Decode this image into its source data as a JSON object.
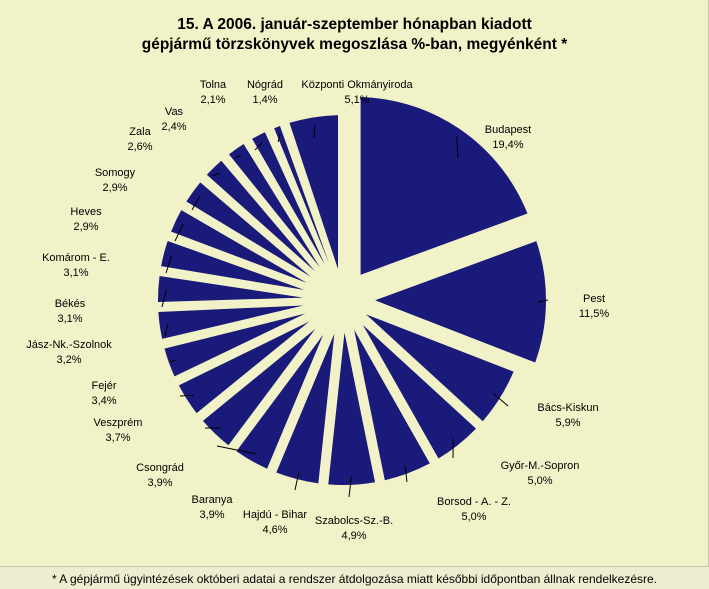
{
  "title_line1": "15. A  2006. január-szeptember hónapban kiadott",
  "title_line2": "gépjármű törzskönyvek megoszlása %-ban, megyénként *",
  "footnote": "*  A gépjármű ügyintézések októberi adatai a rendszer átdolgozása miatt későbbi időpontban állnak rendelkezésre.",
  "colors": {
    "slice": "#1a1a7a",
    "background": "#f2f2c8",
    "leader": "#000000"
  },
  "chart_data": {
    "type": "pie",
    "title": "15. A  2006. január-szeptember hónapban kiadott gépjármű törzskönyvek megoszlása %-ban, megyénként *",
    "exploded": true,
    "slices": [
      {
        "label": "Budapest",
        "value_text": "19,4%",
        "value": 19.4
      },
      {
        "label": "Pest",
        "value_text": "11,5%",
        "value": 11.5
      },
      {
        "label": "Bács-Kiskun",
        "value_text": "5,9%",
        "value": 5.9
      },
      {
        "label": "Győr-M.-Sopron",
        "value_text": "5,0%",
        "value": 5.0
      },
      {
        "label": "Borsod  - A. - Z.",
        "value_text": "5,0%",
        "value": 5.0
      },
      {
        "label": "Szabolcs-Sz.-B.",
        "value_text": "4,9%",
        "value": 4.9
      },
      {
        "label": "Hajdú - Bihar",
        "value_text": "4,6%",
        "value": 4.6
      },
      {
        "label": "Baranya",
        "value_text": "3,9%",
        "value": 3.9
      },
      {
        "label": "Csongrád",
        "value_text": "3,9%",
        "value": 3.9
      },
      {
        "label": "Veszprém",
        "value_text": "3,7%",
        "value": 3.7
      },
      {
        "label": "Fejér",
        "value_text": "3,4%",
        "value": 3.4
      },
      {
        "label": "Jász-Nk.-Szolnok",
        "value_text": "3,2%",
        "value": 3.2
      },
      {
        "label": "Békés",
        "value_text": "3,1%",
        "value": 3.1
      },
      {
        "label": "Komárom - E.",
        "value_text": "3,1%",
        "value": 3.1
      },
      {
        "label": "Heves",
        "value_text": "2,9%",
        "value": 2.9
      },
      {
        "label": "Somogy",
        "value_text": "2,9%",
        "value": 2.9
      },
      {
        "label": "Zala",
        "value_text": "2,6%",
        "value": 2.6
      },
      {
        "label": "Vas",
        "value_text": "2,4%",
        "value": 2.4
      },
      {
        "label": "Tolna",
        "value_text": "2,1%",
        "value": 2.1
      },
      {
        "label": "Nógrád",
        "value_text": "1,4%",
        "value": 1.4
      },
      {
        "label": "Központi Okmányiroda",
        "value_text": "5,1%",
        "value": 5.1
      }
    ]
  }
}
